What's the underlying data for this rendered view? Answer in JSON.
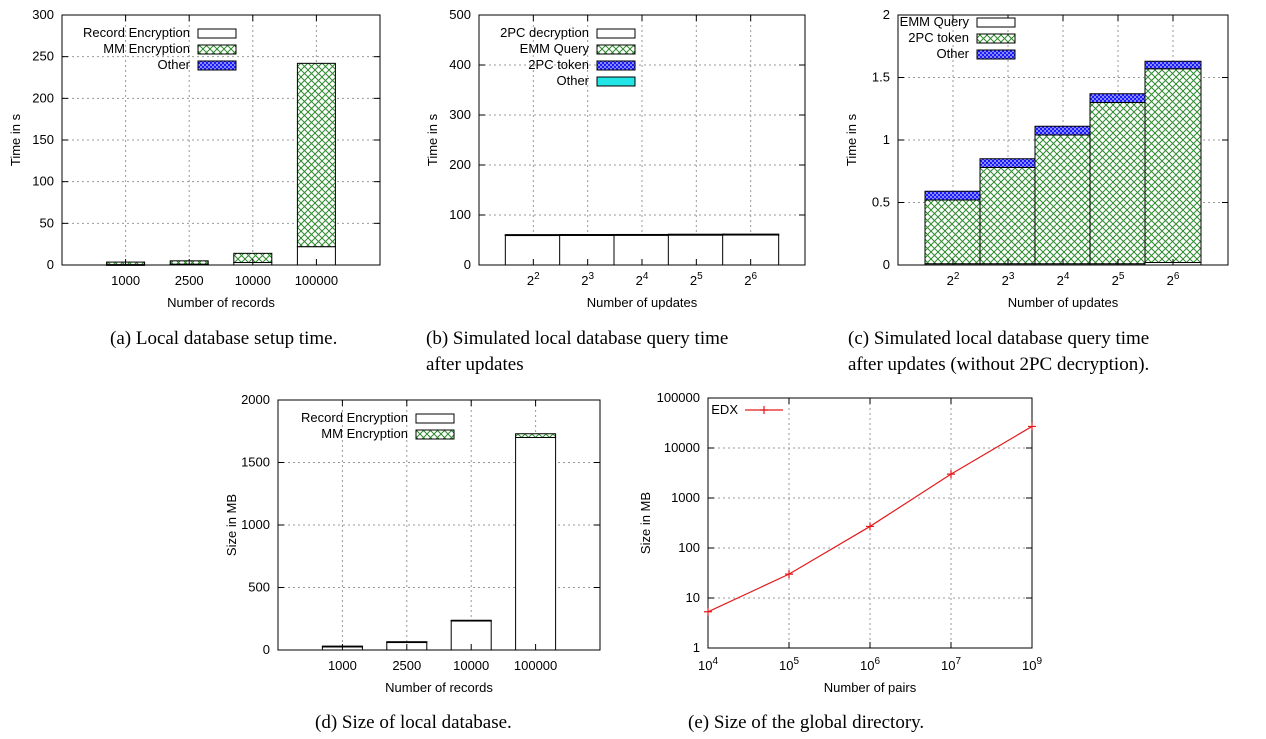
{
  "captions": [
    {
      "lines": [
        "(a) Local database setup time."
      ]
    },
    {
      "lines": [
        "(b)  Simulated  local  database  query  time",
        "after updates"
      ]
    },
    {
      "lines": [
        "(c)  Simulated  local  database  query  time",
        "after updates (without 2PC decryption)."
      ]
    },
    {
      "lines": [
        "(d) Size of local database."
      ]
    },
    {
      "lines": [
        "(e) Size of the global directory."
      ]
    }
  ],
  "chart_data": [
    {
      "id": "a",
      "type": "bar",
      "stacked": true,
      "xlabel": "Number of records",
      "ylabel": "Time in s",
      "ylim": [
        0,
        300
      ],
      "yticks": [
        "0",
        "50",
        "100",
        "150",
        "200",
        "250",
        "300"
      ],
      "categories": [
        {
          "base": "1000"
        },
        {
          "base": "2500"
        },
        {
          "base": "10000"
        },
        {
          "base": "100000"
        }
      ],
      "legend_position": "top-left",
      "series": [
        {
          "name": "Record Encryption",
          "pattern": "white",
          "values": [
            0.5,
            1,
            3,
            22
          ]
        },
        {
          "name": "MM Encryption",
          "pattern": "green-hatch",
          "values": [
            3,
            4,
            11,
            220
          ]
        },
        {
          "name": "Other",
          "pattern": "blue-check",
          "values": [
            0,
            0,
            0,
            0
          ]
        }
      ],
      "grid": true
    },
    {
      "id": "b",
      "type": "bar",
      "stacked": true,
      "xlabel": "Number of updates",
      "ylabel": "Time in s",
      "ylim": [
        0,
        500
      ],
      "yticks": [
        "0",
        "100",
        "200",
        "300",
        "400",
        "500"
      ],
      "categories": [
        {
          "base": "2",
          "exp": "2"
        },
        {
          "base": "2",
          "exp": "3"
        },
        {
          "base": "2",
          "exp": "4"
        },
        {
          "base": "2",
          "exp": "5"
        },
        {
          "base": "2",
          "exp": "6"
        }
      ],
      "legend_position": "top-left",
      "series": [
        {
          "name": "2PC decryption",
          "pattern": "white",
          "values": [
            60,
            60,
            60,
            60,
            60
          ]
        },
        {
          "name": "EMM Query",
          "pattern": "green-hatch",
          "values": [
            0.5,
            0.8,
            1.0,
            1.3,
            1.5
          ]
        },
        {
          "name": "2PC token",
          "pattern": "blue-check",
          "values": [
            0.07,
            0.07,
            0.07,
            0.07,
            0.07
          ]
        },
        {
          "name": "Other",
          "pattern": "cyan",
          "values": [
            0,
            0,
            0,
            0,
            0
          ]
        }
      ],
      "grid": true
    },
    {
      "id": "c",
      "type": "bar",
      "stacked": true,
      "xlabel": "Number of updates",
      "ylabel": "Time in s",
      "ylim": [
        0,
        2
      ],
      "yticks": [
        "0",
        "0.5",
        "1",
        "1.5",
        "2"
      ],
      "categories": [
        {
          "base": "2",
          "exp": "2"
        },
        {
          "base": "2",
          "exp": "3"
        },
        {
          "base": "2",
          "exp": "4"
        },
        {
          "base": "2",
          "exp": "5"
        },
        {
          "base": "2",
          "exp": "6"
        }
      ],
      "legend_position": "top-left",
      "series": [
        {
          "name": "EMM Query",
          "pattern": "white",
          "values": [
            0.01,
            0.01,
            0.01,
            0.01,
            0.02
          ]
        },
        {
          "name": "2PC token",
          "pattern": "green-hatch",
          "values": [
            0.51,
            0.77,
            1.03,
            1.29,
            1.55
          ]
        },
        {
          "name": "Other",
          "pattern": "blue-check",
          "values": [
            0.07,
            0.07,
            0.07,
            0.07,
            0.06
          ]
        }
      ],
      "grid": true
    },
    {
      "id": "d",
      "type": "bar",
      "stacked": true,
      "xlabel": "Number of records",
      "ylabel": "Size in MB",
      "ylim": [
        0,
        2000
      ],
      "yticks": [
        "0",
        "500",
        "1000",
        "1500",
        "2000"
      ],
      "categories": [
        {
          "base": "1000"
        },
        {
          "base": "2500"
        },
        {
          "base": "10000"
        },
        {
          "base": "100000"
        }
      ],
      "legend_position": "top-right",
      "series": [
        {
          "name": "Record Encryption",
          "pattern": "white",
          "values": [
            30,
            65,
            235,
            1700
          ]
        },
        {
          "name": "MM Encryption",
          "pattern": "green-hatch",
          "values": [
            0.5,
            1,
            3,
            30
          ]
        }
      ],
      "grid": true
    },
    {
      "id": "e",
      "type": "line",
      "log_scale": {
        "x": true,
        "y": true
      },
      "xlabel": "Number of pairs",
      "ylabel": "Size in MB",
      "xticks": [
        {
          "base": "10",
          "exp": "4"
        },
        {
          "base": "10",
          "exp": "5"
        },
        {
          "base": "10",
          "exp": "6"
        },
        {
          "base": "10",
          "exp": "7"
        },
        {
          "base": "10",
          "exp": "9"
        }
      ],
      "yticks": [
        "1",
        "10",
        "100",
        "1000",
        "10000",
        "100000"
      ],
      "legend_position": "top-left",
      "series": [
        {
          "name": "EDX",
          "color": "#e41a1c",
          "x": [
            10000,
            100000,
            1000000,
            10000000,
            1000000000
          ],
          "y": [
            5.3,
            30,
            270,
            3000,
            27000
          ]
        }
      ],
      "grid": true
    }
  ]
}
